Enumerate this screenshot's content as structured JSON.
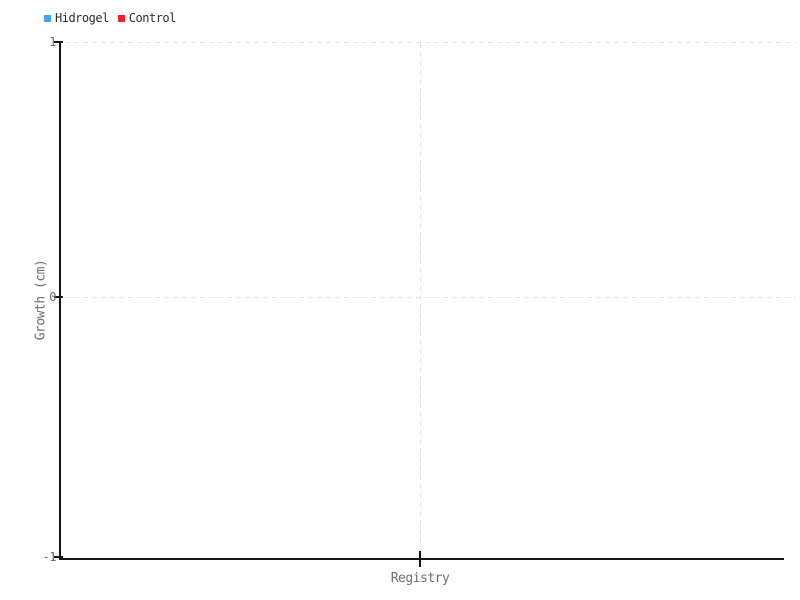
{
  "legend": {
    "items": [
      {
        "label": "Hidrogel",
        "color": "#44a4f2"
      },
      {
        "label": "Control",
        "color": "#f5232b"
      }
    ]
  },
  "axes": {
    "y": {
      "label": "Growth (cm)",
      "tick_labels": [
        "1",
        "0",
        "-1"
      ]
    },
    "x": {
      "label": "Registry",
      "tick_labels": [
        ""
      ]
    }
  },
  "chart_data": {
    "type": "line",
    "title": "",
    "xlabel": "Registry",
    "ylabel": "Growth (cm)",
    "ylim": [
      -1,
      1
    ],
    "yticks": [
      1,
      0,
      -1
    ],
    "xticks": [
      ""
    ],
    "categories": [],
    "series": [
      {
        "name": "Hidrogel",
        "color": "#44a4f2",
        "values": []
      },
      {
        "name": "Control",
        "color": "#f5232b",
        "values": []
      }
    ],
    "legend_position": "top-left",
    "grid": "dashed",
    "plot_empty": true
  }
}
